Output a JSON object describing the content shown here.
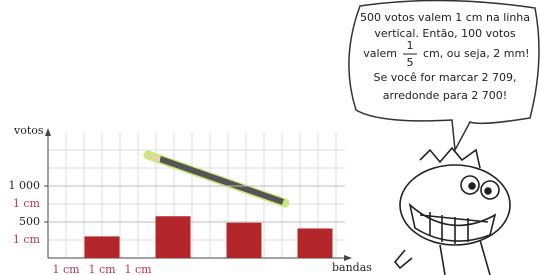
{
  "chart_data": {
    "type": "bar",
    "y_label": "votos",
    "x_label": "bandas",
    "categories": [
      null,
      null,
      null,
      null
    ],
    "values": [
      300,
      580,
      490,
      410
    ],
    "color": "#b3262a",
    "ylim": [
      0,
      1750
    ],
    "yticks": [
      500,
      {
        "value": 1000,
        "label": "1 000"
      }
    ],
    "grid": true,
    "scale_annotations": [
      {
        "value": 250,
        "label": "1 cm"
      },
      {
        "value": 750,
        "label": "1 cm"
      }
    ],
    "x_scale_labels": [
      "1 cm",
      "1 cm",
      "1 cm"
    ]
  },
  "speech_bubble": {
    "lines": [
      "500 votos valem 1 cm na linha",
      "vertical. Então, 100 votos",
      "valem",
      "cm, ou seja, 2 mm!",
      "Se você for marcar 2 709,",
      "arredonde para 2 700!"
    ],
    "fraction": {
      "numerator": "1",
      "denominator": "5"
    }
  }
}
